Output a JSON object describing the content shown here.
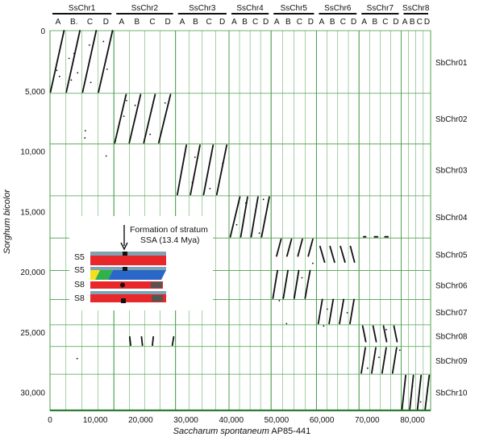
{
  "chart_data": {
    "type": "scatter",
    "xlabel_italic": "Saccharum spontaneum",
    "xlabel_rest": " AP85-441",
    "ylabel": "Sorghum bicolor",
    "xlim": [
      0,
      84000
    ],
    "ylim": [
      0,
      31500
    ],
    "grid": true,
    "x_ticks": [
      0,
      10000,
      20000,
      30000,
      40000,
      50000,
      60000,
      70000,
      80000
    ],
    "x_tick_labels": [
      "0",
      "10,000",
      "20,000",
      "30,000",
      "40,000",
      "50,000",
      "60,000",
      "70,000",
      "80,000"
    ],
    "y_ticks": [
      0,
      5000,
      10000,
      15000,
      20000,
      25000,
      30000
    ],
    "y_tick_labels": [
      "0",
      "5,000",
      "10,000",
      "15,000",
      "20,000",
      "25,000",
      "30,000"
    ],
    "ss_chromosomes": [
      {
        "name": "SsChr1",
        "start": 0,
        "end": 14100,
        "subs": [
          "A",
          "B.",
          "C",
          "D"
        ]
      },
      {
        "name": "SsChr2",
        "start": 14100,
        "end": 27700,
        "subs": [
          "A",
          "B",
          "C",
          "D"
        ]
      },
      {
        "name": "SsChr3",
        "start": 27700,
        "end": 39500,
        "subs": [
          "A",
          "B",
          "C",
          "D"
        ]
      },
      {
        "name": "SsChr4",
        "start": 39500,
        "end": 48800,
        "subs": [
          "A",
          "B",
          "C",
          "D"
        ]
      },
      {
        "name": "SsChr5",
        "start": 48800,
        "end": 58800,
        "subs": [
          "A",
          "B",
          "C",
          "D"
        ]
      },
      {
        "name": "SsChr6",
        "start": 58800,
        "end": 68200,
        "subs": [
          "A",
          "B",
          "C",
          "D"
        ]
      },
      {
        "name": "SsChr7",
        "start": 68200,
        "end": 77500,
        "subs": [
          "A",
          "B",
          "C",
          "D"
        ]
      },
      {
        "name": "SsChr8",
        "start": 77500,
        "end": 84000,
        "subs": [
          "A",
          "B",
          "C",
          "D"
        ]
      }
    ],
    "sb_chromosomes": [
      {
        "name": "SbChr01",
        "start": 0,
        "end": 5200
      },
      {
        "name": "SbChr02",
        "start": 5200,
        "end": 9400
      },
      {
        "name": "SbChr03",
        "start": 9400,
        "end": 13700
      },
      {
        "name": "SbChr04",
        "start": 13700,
        "end": 17200
      },
      {
        "name": "SbChr05",
        "start": 17200,
        "end": 19900
      },
      {
        "name": "SbChr06",
        "start": 19900,
        "end": 22300
      },
      {
        "name": "SbChr07",
        "start": 22300,
        "end": 24400
      },
      {
        "name": "SbChr08",
        "start": 24400,
        "end": 26200
      },
      {
        "name": "SbChr09",
        "start": 26200,
        "end": 28500
      },
      {
        "name": "SbChr10",
        "start": 28500,
        "end": 31500
      }
    ],
    "synteny_blocks": [
      {
        "x1": 100,
        "y1": 5100,
        "x2": 3100,
        "y2": 0
      },
      {
        "x1": 3600,
        "y1": 5100,
        "x2": 6600,
        "y2": 0
      },
      {
        "x1": 7200,
        "y1": 5100,
        "x2": 10200,
        "y2": 0
      },
      {
        "x1": 10700,
        "y1": 5100,
        "x2": 13800,
        "y2": 0
      },
      {
        "x1": 14300,
        "y1": 9300,
        "x2": 16800,
        "y2": 5300
      },
      {
        "x1": 17500,
        "y1": 9300,
        "x2": 20000,
        "y2": 5300
      },
      {
        "x1": 20700,
        "y1": 9300,
        "x2": 23200,
        "y2": 5300
      },
      {
        "x1": 24000,
        "y1": 9300,
        "x2": 26600,
        "y2": 5300
      },
      {
        "x1": 28100,
        "y1": 13600,
        "x2": 30100,
        "y2": 9500
      },
      {
        "x1": 31000,
        "y1": 13600,
        "x2": 33100,
        "y2": 9500
      },
      {
        "x1": 33900,
        "y1": 13600,
        "x2": 36000,
        "y2": 9500
      },
      {
        "x1": 36800,
        "y1": 13600,
        "x2": 39000,
        "y2": 9500
      },
      {
        "x1": 39800,
        "y1": 17100,
        "x2": 41900,
        "y2": 13800
      },
      {
        "x1": 42100,
        "y1": 17100,
        "x2": 43600,
        "y2": 13800
      },
      {
        "x1": 44400,
        "y1": 17100,
        "x2": 45900,
        "y2": 13800
      },
      {
        "x1": 46700,
        "y1": 17100,
        "x2": 48400,
        "y2": 13800
      },
      {
        "x1": 49200,
        "y1": 22200,
        "x2": 50200,
        "y2": 19900
      },
      {
        "x1": 51500,
        "y1": 22200,
        "x2": 52500,
        "y2": 19900
      },
      {
        "x1": 53900,
        "y1": 22200,
        "x2": 54900,
        "y2": 19900
      },
      {
        "x1": 56300,
        "y1": 22200,
        "x2": 57400,
        "y2": 19900
      },
      {
        "x1": 50000,
        "y1": 18700,
        "x2": 51000,
        "y2": 17300
      },
      {
        "x1": 52300,
        "y1": 18700,
        "x2": 53300,
        "y2": 17300
      },
      {
        "x1": 54700,
        "y1": 18700,
        "x2": 55700,
        "y2": 17300
      },
      {
        "x1": 57000,
        "y1": 18700,
        "x2": 58000,
        "y2": 17300
      },
      {
        "x1": 59200,
        "y1": 24300,
        "x2": 60100,
        "y2": 22300
      },
      {
        "x1": 61600,
        "y1": 24300,
        "x2": 62500,
        "y2": 22300
      },
      {
        "x1": 63900,
        "y1": 24300,
        "x2": 64800,
        "y2": 22300
      },
      {
        "x1": 66200,
        "y1": 24300,
        "x2": 67100,
        "y2": 22300
      },
      {
        "x1": 59600,
        "y1": 17900,
        "x2": 60600,
        "y2": 19200
      },
      {
        "x1": 61800,
        "y1": 17900,
        "x2": 62800,
        "y2": 19200
      },
      {
        "x1": 64100,
        "y1": 17900,
        "x2": 65100,
        "y2": 19200
      },
      {
        "x1": 66300,
        "y1": 17900,
        "x2": 67200,
        "y2": 19200
      },
      {
        "x1": 68700,
        "y1": 28400,
        "x2": 69600,
        "y2": 26300
      },
      {
        "x1": 71000,
        "y1": 28400,
        "x2": 71900,
        "y2": 26300
      },
      {
        "x1": 73300,
        "y1": 28400,
        "x2": 74200,
        "y2": 26300
      },
      {
        "x1": 75600,
        "y1": 28400,
        "x2": 76500,
        "y2": 26300
      },
      {
        "x1": 69000,
        "y1": 24500,
        "x2": 69700,
        "y2": 25800
      },
      {
        "x1": 71300,
        "y1": 24500,
        "x2": 72000,
        "y2": 25800
      },
      {
        "x1": 73600,
        "y1": 24500,
        "x2": 74300,
        "y2": 25800
      },
      {
        "x1": 75900,
        "y1": 24500,
        "x2": 76600,
        "y2": 25800
      },
      {
        "x1": 77700,
        "y1": 31400,
        "x2": 78500,
        "y2": 28600
      },
      {
        "x1": 79400,
        "y1": 31400,
        "x2": 80200,
        "y2": 28600
      },
      {
        "x1": 81100,
        "y1": 31400,
        "x2": 81900,
        "y2": 28600
      },
      {
        "x1": 82800,
        "y1": 31400,
        "x2": 83700,
        "y2": 28600
      },
      {
        "x1": 17600,
        "y1": 25400,
        "x2": 17800,
        "y2": 26100
      },
      {
        "x1": 20200,
        "y1": 25400,
        "x2": 20400,
        "y2": 26100
      },
      {
        "x1": 22800,
        "y1": 25400,
        "x2": 22600,
        "y2": 26100
      },
      {
        "x1": 27000,
        "y1": 26100,
        "x2": 27300,
        "y2": 25400
      },
      {
        "x1": 69200,
        "y1": 17100,
        "x2": 69700,
        "y2": 17100
      },
      {
        "x1": 71600,
        "y1": 17100,
        "x2": 72300,
        "y2": 17100
      },
      {
        "x1": 73900,
        "y1": 17100,
        "x2": 74600,
        "y2": 17100
      }
    ],
    "scattered_points": [
      [
        1500,
        3300
      ],
      [
        2100,
        3800
      ],
      [
        4200,
        2300
      ],
      [
        4700,
        4100
      ],
      [
        5300,
        1900
      ],
      [
        6100,
        3500
      ],
      [
        8700,
        1200
      ],
      [
        9000,
        4300
      ],
      [
        11800,
        900
      ],
      [
        12600,
        3200
      ],
      [
        16300,
        7100
      ],
      [
        16900,
        5800
      ],
      [
        18800,
        6200
      ],
      [
        22100,
        8600
      ],
      [
        25400,
        6000
      ],
      [
        7800,
        8300
      ],
      [
        7700,
        8900
      ],
      [
        12400,
        10400
      ],
      [
        31400,
        12600
      ],
      [
        32000,
        10500
      ],
      [
        35300,
        13100
      ],
      [
        38100,
        11000
      ],
      [
        41200,
        16100
      ],
      [
        43200,
        14300
      ],
      [
        46200,
        16800
      ],
      [
        47100,
        14000
      ],
      [
        50600,
        22400
      ],
      [
        55600,
        20500
      ],
      [
        58000,
        19300
      ],
      [
        61200,
        23100
      ],
      [
        65600,
        23400
      ],
      [
        70100,
        28000
      ],
      [
        72600,
        27100
      ],
      [
        74200,
        24800
      ],
      [
        77200,
        26500
      ],
      [
        80000,
        29500
      ],
      [
        81800,
        30800
      ],
      [
        6000,
        27200
      ],
      [
        60400,
        24500
      ],
      [
        52200,
        24300
      ]
    ],
    "inset": {
      "annotation_line1": "Formation of stratum",
      "annotation_line2": "SSA (13.4 Mya)",
      "track_labels": [
        "S5",
        "S5",
        "S8",
        "S8"
      ],
      "colors": {
        "red": "#e8272b",
        "blue": "#2a67c9",
        "green": "#2fb24a",
        "yellow": "#f4e11c",
        "cap": "#7fa3b5",
        "black": "#111111"
      }
    },
    "colors": {
      "grid": "#4f9e4f",
      "data": "#111111",
      "baseline": "#2e7d32"
    }
  }
}
